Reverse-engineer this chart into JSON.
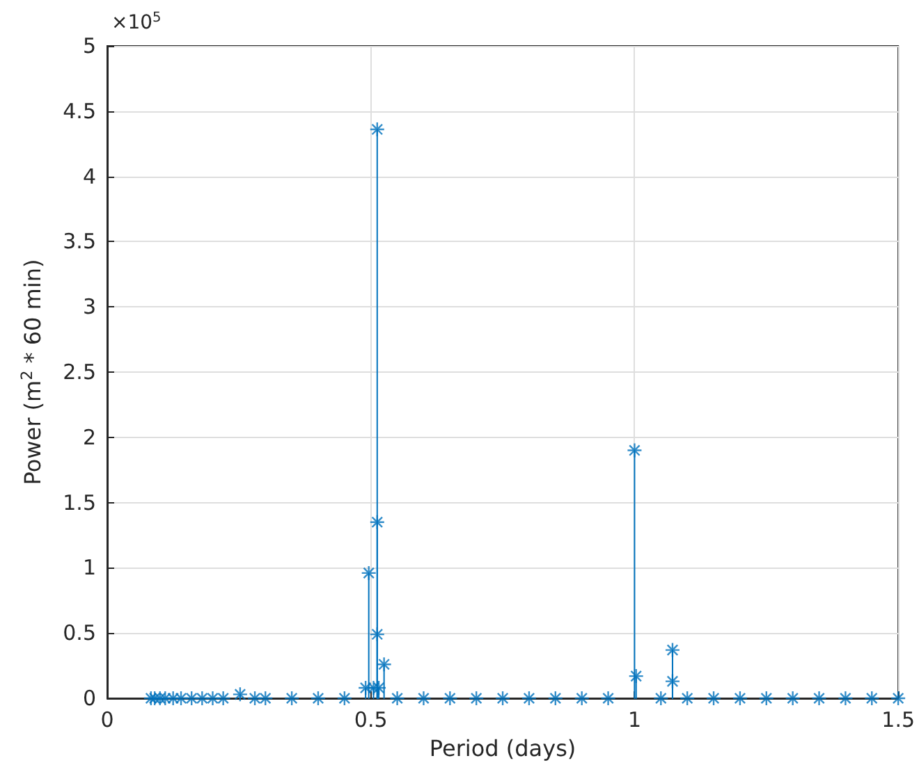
{
  "chart_data": {
    "type": "lollipop",
    "xlabel": "Period (days)",
    "ylabel": "Power (m$^{2}$ * 60 min)",
    "annotations": [
      "×10$^{5}$"
    ],
    "x": [
      0.083,
      0.09,
      0.1,
      0.11,
      0.125,
      0.14,
      0.16,
      0.18,
      0.2,
      0.22,
      0.252,
      0.28,
      0.3,
      0.35,
      0.4,
      0.45,
      0.49,
      0.496,
      0.505,
      0.512,
      0.512,
      0.512,
      0.515,
      0.525,
      0.55,
      0.6,
      0.65,
      0.7,
      0.75,
      0.8,
      0.85,
      0.9,
      0.95,
      1.0,
      1.003,
      1.05,
      1.072,
      1.072,
      1.1,
      1.15,
      1.2,
      1.25,
      1.3,
      1.35,
      1.4,
      1.45,
      1.5
    ],
    "series": [
      {
        "color": "#0072bd",
        "values": [
          0,
          0,
          0,
          0,
          0,
          0,
          0,
          0,
          0,
          0,
          0.03,
          0,
          0,
          0,
          0,
          0,
          0.08,
          0.96,
          0.08,
          4.36,
          1.35,
          0.49,
          0.08,
          0.26,
          0,
          0,
          0,
          0,
          0,
          0,
          0,
          0,
          0,
          1.9,
          0.17,
          0,
          0.37,
          0.13,
          0,
          0,
          0,
          0,
          0,
          0,
          0,
          0,
          0
        ]
      }
    ],
    "xlim": [
      0,
      1.5
    ],
    "xticks": [
      0,
      0.5,
      1,
      1.5
    ],
    "ylim": [
      0,
      5
    ],
    "yticks": [
      0,
      0.5,
      1,
      1.5,
      2,
      2.5,
      3,
      3.5,
      4,
      4.5,
      5
    ],
    "grid": true,
    "marker": "cross",
    "line_style": "solid"
  }
}
